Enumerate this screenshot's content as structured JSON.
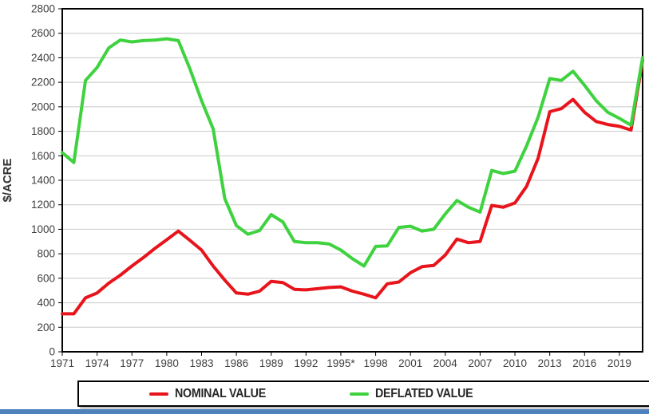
{
  "colors": {
    "nominal": "#e8141c",
    "deflated": "#3fd23f",
    "gridline": "#c9c9c9",
    "axis_text": "#404040",
    "plot_border": "#000000",
    "bottom_bar": "#4f81bd"
  },
  "chart_data": {
    "type": "line",
    "title": "",
    "xlabel": "",
    "ylabel": "$/ACRE",
    "ylim": [
      0,
      2800
    ],
    "y_ticks": [
      0,
      200,
      400,
      600,
      800,
      1000,
      1200,
      1400,
      1600,
      1800,
      2000,
      2200,
      2400,
      2600,
      2800
    ],
    "grid": "horizontal",
    "legend_position": "bottom",
    "x": [
      1971,
      1972,
      1973,
      1974,
      1975,
      1976,
      1977,
      1978,
      1979,
      1980,
      1981,
      1982,
      1983,
      1984,
      1985,
      1986,
      1987,
      1988,
      1989,
      1990,
      1991,
      1992,
      1993,
      1994,
      1995,
      1996,
      1997,
      1998,
      1999,
      2000,
      2001,
      2002,
      2003,
      2004,
      2005,
      2006,
      2007,
      2008,
      2009,
      2010,
      2011,
      2012,
      2013,
      2014,
      2015,
      2016,
      2017,
      2018,
      2019,
      2020,
      2021
    ],
    "x_ticks": [
      1971,
      1974,
      1977,
      1980,
      1983,
      1986,
      1989,
      1992,
      1995,
      1998,
      2001,
      2004,
      2007,
      2010,
      2013,
      2016,
      2019
    ],
    "x_tick_labels": [
      "1971",
      "1974",
      "1977",
      "1980",
      "1983",
      "1986",
      "1989",
      "1992",
      "1995*",
      "1998",
      "2001",
      "2004",
      "2007",
      "2010",
      "2013",
      "2016",
      "2019"
    ],
    "series": [
      {
        "name": "NOMINAL VALUE",
        "color": "#e8141c",
        "values": [
          310,
          310,
          440,
          480,
          560,
          625,
          700,
          770,
          845,
          915,
          985,
          910,
          830,
          700,
          585,
          480,
          470,
          495,
          575,
          565,
          510,
          505,
          515,
          525,
          530,
          495,
          470,
          440,
          555,
          570,
          645,
          695,
          705,
          790,
          920,
          890,
          900,
          1195,
          1180,
          1215,
          1350,
          1580,
          1960,
          1985,
          2060,
          1955,
          1880,
          1855,
          1840,
          1810,
          2380
        ]
      },
      {
        "name": "DEFLATED VALUE",
        "color": "#3fd23f",
        "values": [
          1625,
          1545,
          2215,
          2320,
          2480,
          2545,
          2530,
          2540,
          2545,
          2555,
          2540,
          2310,
          2050,
          1820,
          1250,
          1030,
          960,
          990,
          1120,
          1060,
          900,
          890,
          890,
          880,
          830,
          760,
          700,
          860,
          865,
          1015,
          1025,
          985,
          1000,
          1125,
          1235,
          1180,
          1140,
          1480,
          1455,
          1475,
          1680,
          1915,
          2230,
          2215,
          2290,
          2175,
          2050,
          1955,
          1905,
          1850,
          2400
        ]
      }
    ]
  },
  "legend": {
    "items": [
      {
        "label": "NOMINAL VALUE",
        "color": "#e8141c"
      },
      {
        "label": "DEFLATED VALUE",
        "color": "#3fd23f"
      }
    ]
  }
}
